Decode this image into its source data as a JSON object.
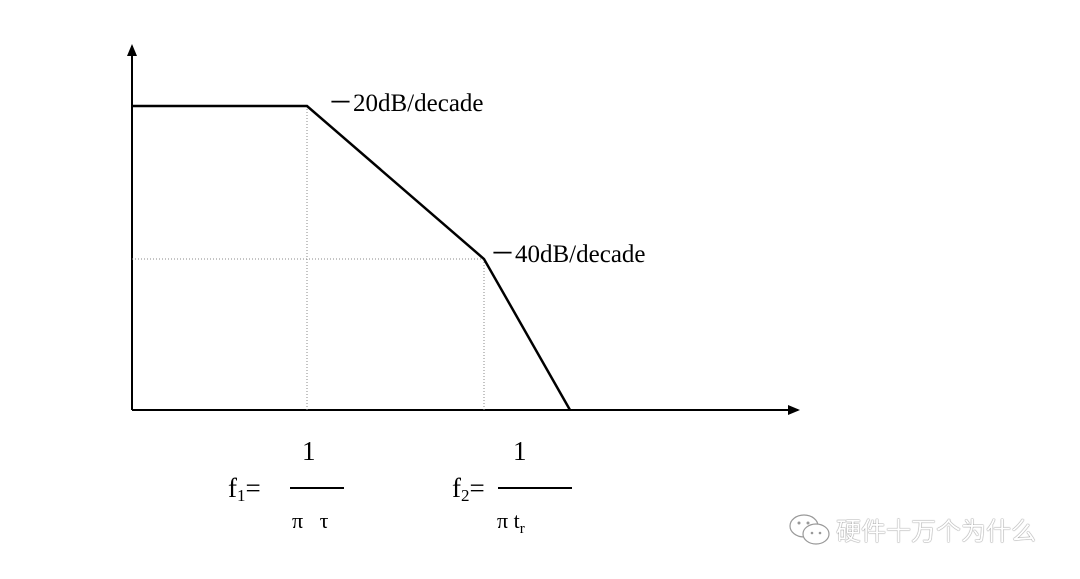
{
  "labels": {
    "slope1": "－20dB/decade",
    "slope2": "－40dB/decade"
  },
  "formulas": {
    "f1": {
      "lhs": "f",
      "sub": "1",
      "eq": "=",
      "numerator": "1",
      "denominator": "π   τ"
    },
    "f2": {
      "lhs": "f",
      "sub": "2",
      "eq": "=",
      "numerator": "1",
      "denominator_main": "π t",
      "denominator_sub": "r"
    }
  },
  "watermark": {
    "icon": "wechat-icon",
    "text": "硬件十万个为什么"
  }
}
